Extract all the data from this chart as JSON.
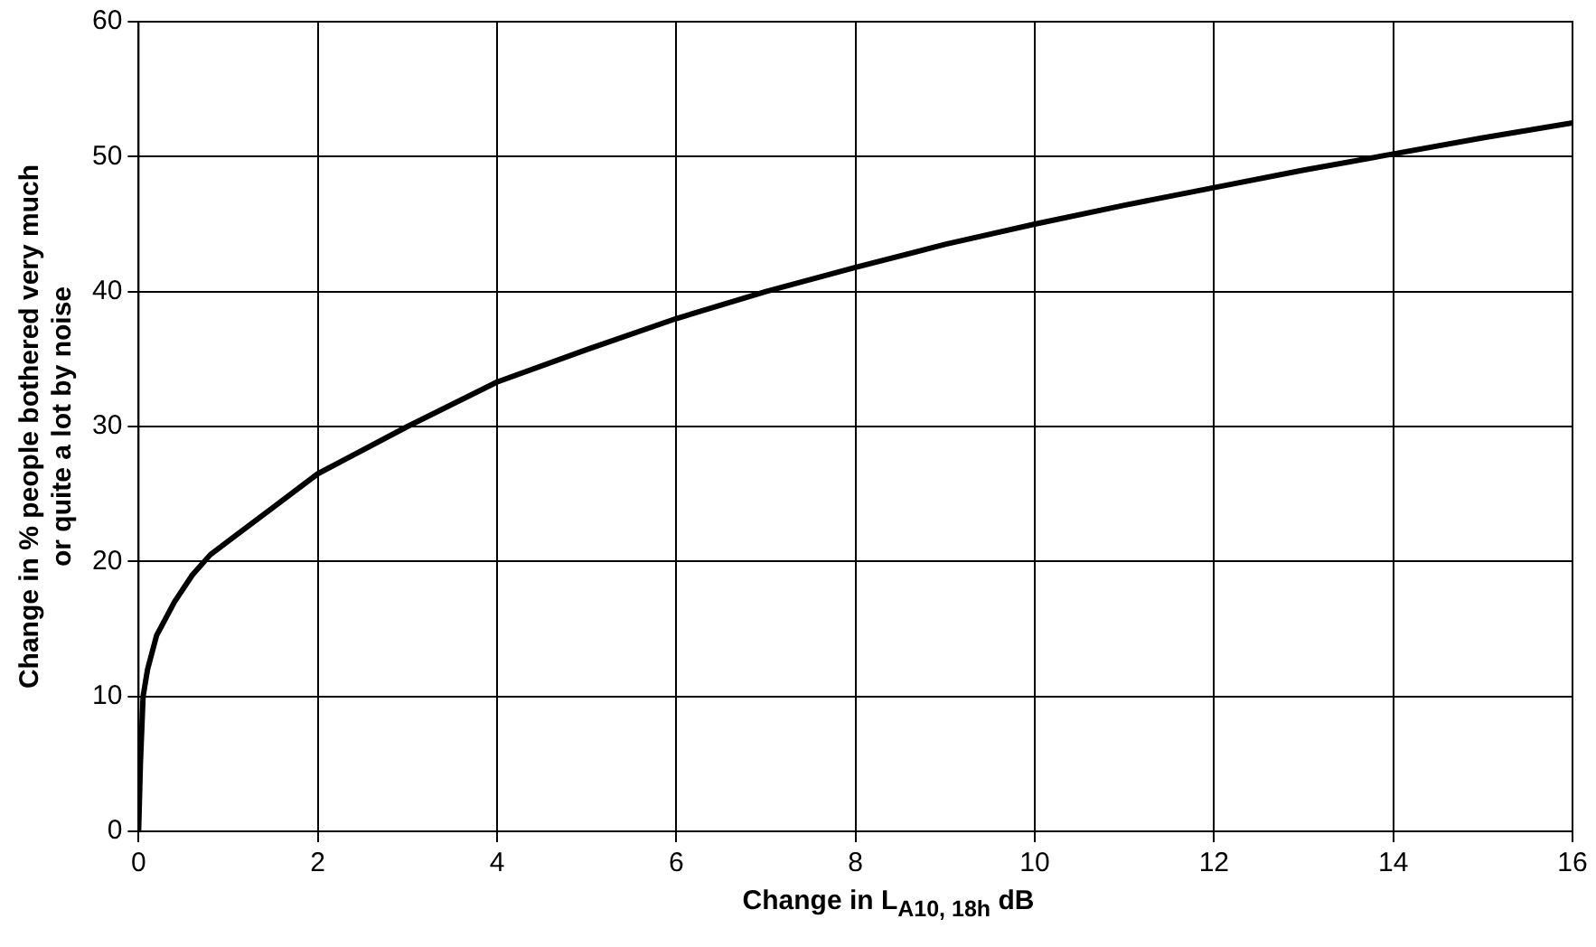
{
  "chart_data": {
    "type": "line",
    "xlabel": "Change in L$_{A10, 18h}$ dB",
    "ylabel": "Change in % people bothered very much\nor quite a lot by noise",
    "x": [
      0,
      0.02,
      0.05,
      0.1,
      0.2,
      0.4,
      0.6,
      0.8,
      1,
      1.5,
      2,
      3,
      4,
      5,
      6,
      7,
      8,
      9,
      10,
      11,
      12,
      13,
      14,
      15,
      16
    ],
    "series": [
      {
        "color": "#000000",
        "values": [
          0,
          5,
          10,
          12,
          14.5,
          17,
          19,
          20.5,
          21.5,
          24,
          26.5,
          30,
          33.3,
          35.7,
          38,
          40,
          41.8,
          43.5,
          45,
          46.4,
          47.7,
          49,
          50.2,
          51.4,
          52.5
        ]
      }
    ],
    "xlim": [
      0,
      16
    ],
    "xticks": [
      0,
      2,
      4,
      6,
      8,
      10,
      12,
      14,
      16
    ],
    "ylim": [
      0,
      60
    ],
    "yticks": [
      0,
      10,
      20,
      30,
      40,
      50,
      60
    ],
    "grid": true,
    "legend": false,
    "marker": "none",
    "line_style": "solid"
  }
}
